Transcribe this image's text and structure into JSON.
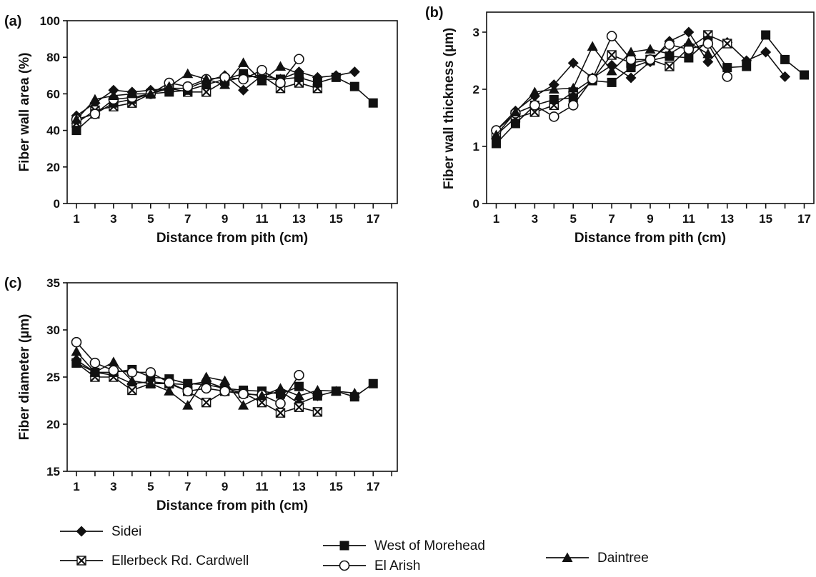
{
  "chart_data": [
    {
      "type": "line",
      "panel_label": "(a)",
      "xlabel": "Distance from pith (cm)",
      "ylabel": "Fiber wall area (%)",
      "xlim": [
        0.5,
        18.3
      ],
      "ylim": [
        0,
        100
      ],
      "xticks": [
        "1",
        "3",
        "5",
        "7",
        "9",
        "11",
        "13",
        "15",
        "17"
      ],
      "xtick_values": [
        1,
        3,
        5,
        7,
        9,
        11,
        13,
        15,
        17
      ],
      "yticks": [
        "0",
        "20",
        "40",
        "60",
        "80",
        "100"
      ],
      "ytick_values": [
        0,
        20,
        40,
        60,
        80,
        100
      ],
      "series": [
        {
          "name": "Sidei",
          "marker": "diamond",
          "x": [
            1,
            2,
            3,
            4,
            5,
            6,
            7,
            8,
            9,
            10,
            11,
            12,
            13,
            14,
            15,
            16
          ],
          "y": [
            48,
            55,
            62,
            61,
            62,
            63,
            63,
            67,
            70,
            62,
            70,
            68,
            72,
            69,
            70,
            72
          ]
        },
        {
          "name": "Ellerbeck Rd. Cardwell",
          "marker": "xbox",
          "x": [
            1,
            2,
            3,
            4,
            5,
            6,
            7,
            8,
            9,
            10,
            11,
            12,
            13,
            14
          ],
          "y": [
            44,
            51,
            53,
            55,
            60,
            63,
            61,
            61,
            67,
            69,
            70,
            63,
            66,
            63
          ]
        },
        {
          "name": "West of Morehead",
          "marker": "square",
          "x": [
            1,
            2,
            3,
            4,
            5,
            6,
            7,
            8,
            9,
            10,
            11,
            12,
            13,
            14,
            15,
            16,
            17
          ],
          "y": [
            40,
            49,
            55,
            57,
            60,
            61,
            62,
            65,
            68,
            71,
            68,
            68,
            69,
            66,
            69,
            64,
            55
          ]
        },
        {
          "name": "El Arish",
          "marker": "circle",
          "x": [
            1,
            2,
            3,
            4,
            5,
            6,
            7,
            8,
            9,
            10,
            11,
            12,
            13
          ],
          "y": [
            46,
            49,
            57,
            58,
            60,
            66,
            64,
            68,
            69,
            68,
            73,
            66,
            79
          ]
        },
        {
          "name": "Daintree",
          "marker": "triangle",
          "x": [
            1,
            2,
            3,
            4,
            5,
            6,
            7,
            8,
            9,
            10,
            11,
            12,
            13
          ],
          "y": [
            46,
            57,
            59,
            60,
            60,
            64,
            71,
            68,
            65,
            77,
            67,
            75,
            71
          ]
        }
      ]
    },
    {
      "type": "line",
      "panel_label": "(b)",
      "xlabel": "Distance from pith (cm)",
      "ylabel": "Fiber wall thickness (µm)",
      "xlim": [
        0.5,
        17.5
      ],
      "ylim": [
        0,
        3.35
      ],
      "xticks": [
        "1",
        "3",
        "5",
        "7",
        "9",
        "11",
        "13",
        "15",
        "17"
      ],
      "xtick_values": [
        1,
        3,
        5,
        7,
        9,
        11,
        13,
        15,
        17
      ],
      "yticks": [
        "0",
        "1",
        "2",
        "3"
      ],
      "ytick_values": [
        0,
        1,
        2,
        3
      ],
      "series": [
        {
          "name": "Sidei",
          "marker": "diamond",
          "x": [
            1,
            2,
            3,
            4,
            5,
            6,
            7,
            8,
            9,
            10,
            11,
            12,
            13,
            14,
            15,
            16
          ],
          "y": [
            1.28,
            1.62,
            1.88,
            2.08,
            2.46,
            2.2,
            2.42,
            2.2,
            2.48,
            2.84,
            3.0,
            2.48,
            2.82,
            2.5,
            2.65,
            2.22
          ]
        },
        {
          "name": "Ellerbeck Rd. Cardwell",
          "marker": "xbox",
          "x": [
            1,
            2,
            3,
            4,
            5,
            6,
            7,
            8,
            9,
            10,
            11,
            12,
            13
          ],
          "y": [
            1.2,
            1.5,
            1.6,
            1.72,
            1.95,
            2.18,
            2.6,
            2.46,
            2.52,
            2.4,
            2.72,
            2.95,
            2.8
          ]
        },
        {
          "name": "West of Morehead",
          "marker": "square",
          "x": [
            1,
            2,
            3,
            4,
            5,
            6,
            7,
            8,
            9,
            10,
            11,
            12,
            13,
            14,
            15,
            16,
            17
          ],
          "y": [
            1.05,
            1.4,
            1.72,
            1.82,
            1.85,
            2.15,
            2.12,
            2.38,
            2.5,
            2.58,
            2.55,
            2.85,
            2.38,
            2.4,
            2.95,
            2.52,
            2.25
          ]
        },
        {
          "name": "El Arish",
          "marker": "circle",
          "x": [
            1,
            2,
            3,
            4,
            5,
            6,
            7,
            8,
            9,
            10,
            11,
            12,
            13
          ],
          "y": [
            1.28,
            1.58,
            1.72,
            1.52,
            1.72,
            2.18,
            2.93,
            2.52,
            2.52,
            2.78,
            2.7,
            2.8,
            2.22
          ]
        },
        {
          "name": "Daintree",
          "marker": "triangle",
          "x": [
            1,
            2,
            3,
            4,
            5,
            6,
            7,
            8,
            9,
            10,
            11,
            12
          ],
          "y": [
            1.2,
            1.6,
            1.95,
            2.0,
            2.02,
            2.75,
            2.32,
            2.65,
            2.7,
            2.62,
            2.82,
            2.62
          ]
        }
      ]
    },
    {
      "type": "line",
      "panel_label": "(c)",
      "xlabel": "Distance from pith (cm)",
      "ylabel": "Fiber diameter (µm)",
      "xlim": [
        0.5,
        18.3
      ],
      "ylim": [
        15,
        35
      ],
      "xticks": [
        "1",
        "3",
        "5",
        "7",
        "9",
        "11",
        "13",
        "15",
        "17"
      ],
      "xtick_values": [
        1,
        3,
        5,
        7,
        9,
        11,
        13,
        15,
        17
      ],
      "yticks": [
        "15",
        "20",
        "25",
        "30",
        "35"
      ],
      "ytick_values": [
        15,
        20,
        25,
        30,
        35
      ],
      "series": [
        {
          "name": "Sidei",
          "marker": "diamond",
          "x": [
            1,
            2,
            3,
            4,
            5,
            6,
            7,
            8,
            9,
            10,
            11,
            12,
            13,
            14
          ],
          "y": [
            26.8,
            25.5,
            25.2,
            24.3,
            24.5,
            24.3,
            24.2,
            24.5,
            23.8,
            23.3,
            23.0,
            23.5,
            22.2,
            23.0
          ]
        },
        {
          "name": "Ellerbeck Rd. Cardwell",
          "marker": "xbox",
          "x": [
            1,
            2,
            3,
            4,
            5,
            6,
            7,
            8,
            9,
            10,
            11,
            12,
            13,
            14
          ],
          "y": [
            26.5,
            25.0,
            25.0,
            23.6,
            24.3,
            24.3,
            23.5,
            22.3,
            23.5,
            23.3,
            22.3,
            21.2,
            21.8,
            21.3
          ]
        },
        {
          "name": "West of Morehead",
          "marker": "square",
          "x": [
            1,
            2,
            3,
            4,
            5,
            6,
            7,
            8,
            9,
            10,
            11,
            12,
            13,
            14,
            15,
            16,
            17
          ],
          "y": [
            26.5,
            25.5,
            25.5,
            25.8,
            25.0,
            24.8,
            24.3,
            24.2,
            23.8,
            23.6,
            23.5,
            23.2,
            24.0,
            23.0,
            23.5,
            22.9,
            24.3
          ]
        },
        {
          "name": "El Arish",
          "marker": "circle",
          "x": [
            1,
            2,
            3,
            4,
            5,
            6,
            7,
            8,
            9,
            10,
            11,
            12,
            13
          ],
          "y": [
            28.7,
            26.5,
            25.7,
            25.5,
            25.5,
            24.4,
            23.5,
            23.8,
            23.5,
            23.2,
            23.1,
            22.2,
            25.2
          ]
        },
        {
          "name": "Daintree",
          "marker": "triangle",
          "x": [
            1,
            2,
            3,
            4,
            5,
            6,
            7,
            8,
            9,
            10,
            11,
            12,
            13,
            14,
            15,
            16
          ],
          "y": [
            27.7,
            25.5,
            26.6,
            24.6,
            24.3,
            23.5,
            22.0,
            25.0,
            24.6,
            22.0,
            23.0,
            23.8,
            23.0,
            23.6,
            23.5,
            23.3
          ]
        }
      ]
    }
  ],
  "legend": [
    {
      "label": "Sidei",
      "marker": "diamond"
    },
    {
      "label": "Ellerbeck Rd. Cardwell",
      "marker": "xbox"
    },
    {
      "label": "West of Morehead",
      "marker": "square"
    },
    {
      "label": "El Arish",
      "marker": "circle"
    },
    {
      "label": "Daintree",
      "marker": "triangle"
    }
  ]
}
